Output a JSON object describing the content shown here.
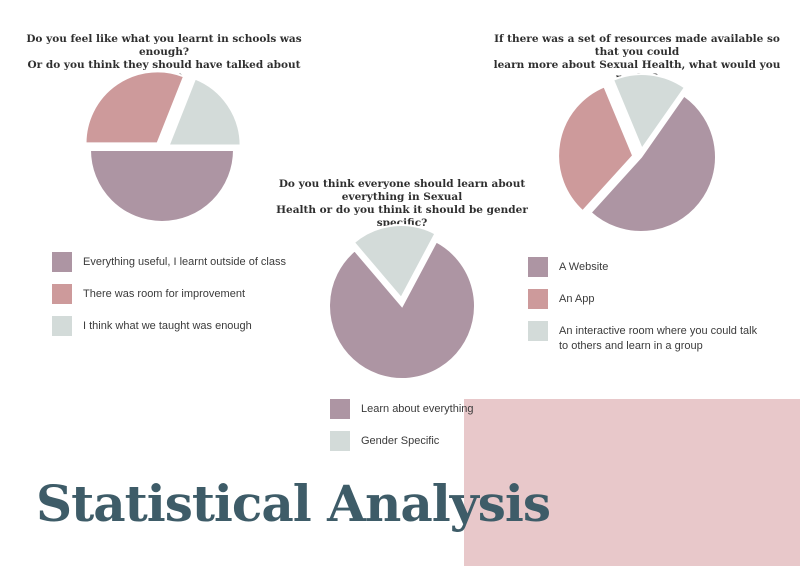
{
  "page": {
    "title": "Statistical Analysis"
  },
  "colors": {
    "mauve": "#ad95a3",
    "rose": "#cd9a9b",
    "sage": "#d3dbd9",
    "title": "#3e5c68",
    "accent_block": "#e8c8ca"
  },
  "chart_data": [
    {
      "type": "pie",
      "title": "Do you feel like what you learnt in schools was enough?\nOr do you think they should have talked about more?",
      "labels": [
        "Everything useful, I learnt outside of class",
        "There was room for improvement",
        "I think what we taught was enough"
      ],
      "values": [
        50,
        31,
        19
      ],
      "colors": [
        "#ad95a3",
        "#cd9a9b",
        "#d3dbd9"
      ],
      "legend": "bottom"
    },
    {
      "type": "pie",
      "title": "If there was a set of resources made available so that you could\nlearn more about Sexual Health, what would you prefer?",
      "labels": [
        "A Website",
        "An App",
        "An interactive room where you could talk to others and learn in a group"
      ],
      "values": [
        52,
        32,
        16
      ],
      "colors": [
        "#ad95a3",
        "#cd9a9b",
        "#d3dbd9"
      ],
      "legend": "bottom"
    },
    {
      "type": "pie",
      "title": "Do you think everyone should learn about everything in Sexual\nHealth or do you think it should be gender specific?",
      "labels": [
        "Learn about everything",
        "Gender Specific"
      ],
      "values": [
        81,
        19
      ],
      "colors": [
        "#ad95a3",
        "#d3dbd9"
      ],
      "legend": "bottom"
    }
  ]
}
